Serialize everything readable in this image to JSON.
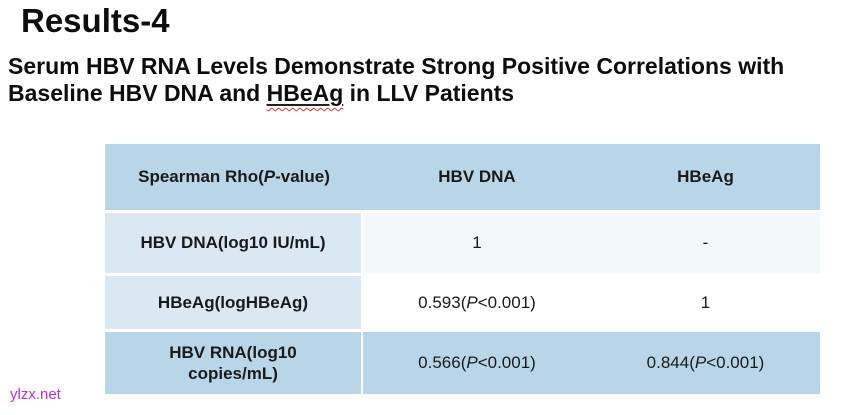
{
  "slide": {
    "title": "Results-4",
    "subtitle": {
      "line1": "Serum HBV RNA Levels Demonstrate Strong Positive Correlations with",
      "line2_before": "Baseline HBV DNA and ",
      "line2_underlined": "HBeAg",
      "line2_after": " in LLV Patients"
    },
    "watermark": "ylzx.net"
  },
  "table": {
    "header": {
      "col1_pre": "Spearman Rho(",
      "col1_p": "P",
      "col1_post": "-value)",
      "col2": "HBV DNA",
      "col3": "HBeAg"
    },
    "rows": [
      {
        "label": "HBV DNA(log10 IU/mL)",
        "hbv_dna": "1",
        "hbeag": "-"
      },
      {
        "label": "HBeAg(logHBeAg)",
        "hbv_dna_pre": "0.593(",
        "hbv_dna_p": "P",
        "hbv_dna_post": "<0.001)",
        "hbeag": "1"
      },
      {
        "label": "HBV RNA(log10 copies/mL)",
        "hbv_dna_pre": "0.566(",
        "hbv_dna_p": "P",
        "hbv_dna_post": "<0.001)",
        "hbeag_pre": "0.844(",
        "hbeag_p": "P",
        "hbeag_post": "<0.001)"
      }
    ]
  },
  "colors": {
    "header_row_blue": "#b9d6e9",
    "label_cell_blue": "#dae8f4",
    "pale_value_cell": "#f3f8fb",
    "white_cell": "#ffffff",
    "spellcheck_red": "#e0382e",
    "watermark_purple": "#bb2cd9",
    "text_black": "#0d0d0d"
  }
}
